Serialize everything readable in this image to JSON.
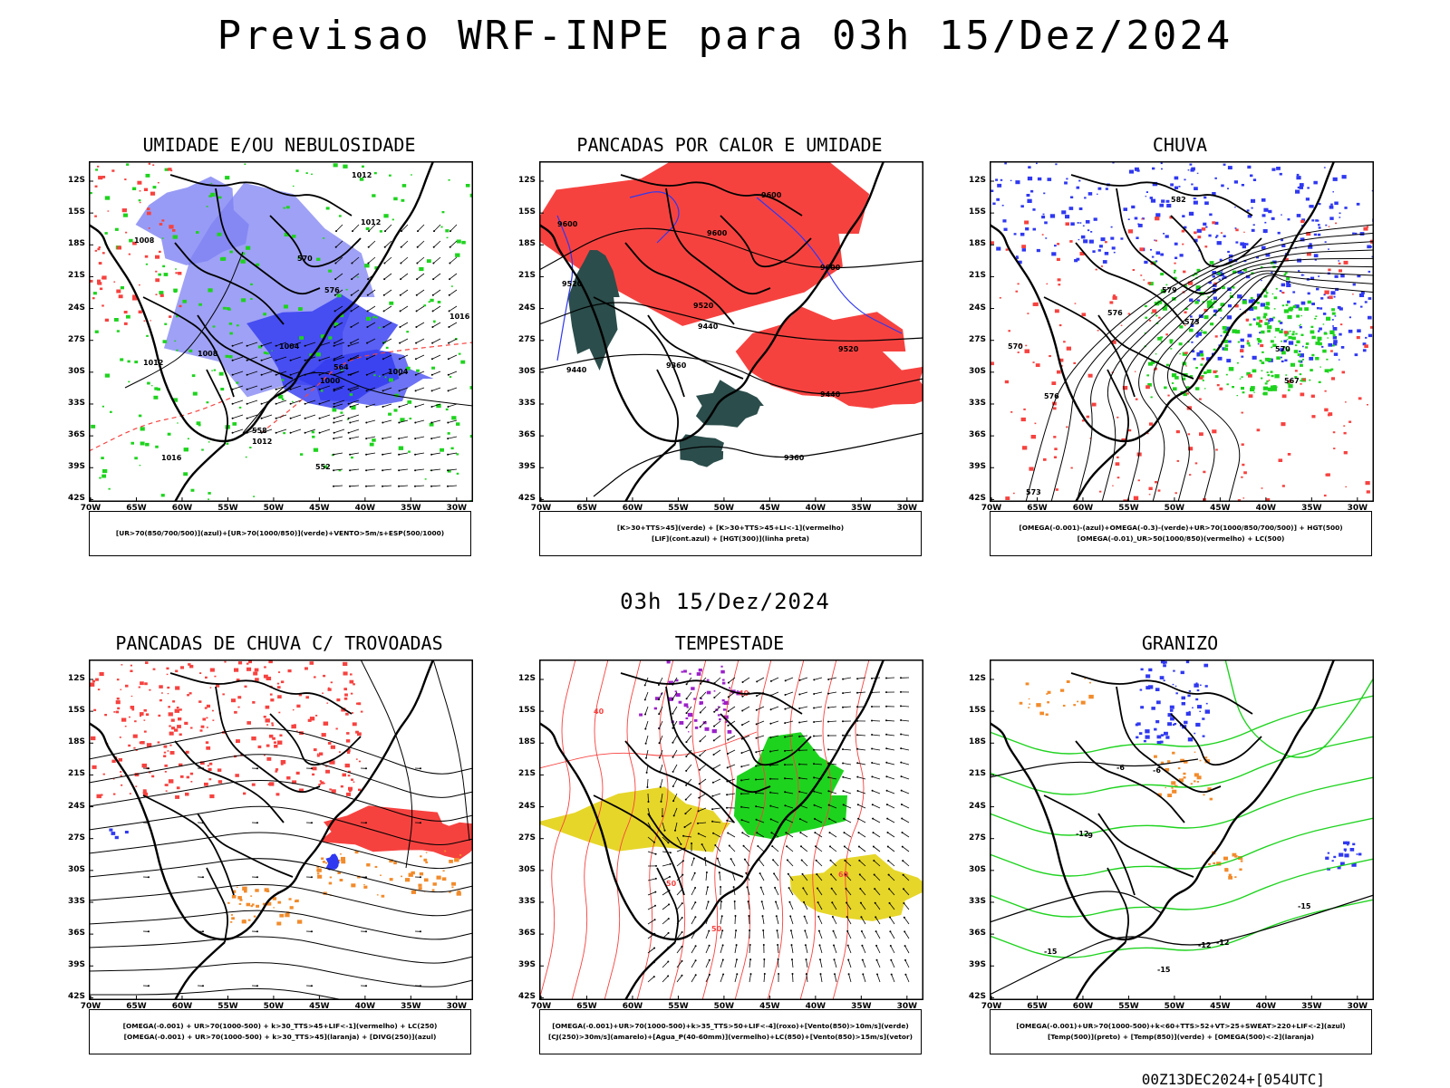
{
  "main_title": "Previsao WRF-INPE  para 03h 15/Dez/2024",
  "mid_title": "03h 15/Dez/2024",
  "footer": "00Z13DEC2024+[054UTC]",
  "axes": {
    "lat_labels": [
      "12S",
      "15S",
      "18S",
      "21S",
      "24S",
      "27S",
      "30S",
      "33S",
      "36S",
      "39S",
      "42S"
    ],
    "lon_labels": [
      "70W",
      "65W",
      "60W",
      "55W",
      "50W",
      "45W",
      "40W",
      "35W",
      "30W"
    ]
  },
  "colors": {
    "blue": "#2f38f0",
    "light_blue": "#7e82f2",
    "green": "#1ed31e",
    "red": "#f6423f",
    "orange": "#f28b2b",
    "dark_teal": "#2b4d4b",
    "yellow": "#e6d629",
    "purple": "#9b21c9"
  },
  "panels": [
    {
      "title": "UMIDADE E/OU NEBULOSIDADE",
      "legend": [
        "[UR>70(850/700/500)](azul)+[UR>70(1000/850)](verde)+VENTO>5m/s+ESP(500/1000)"
      ],
      "contour_labels": [
        "1012",
        "1008",
        "1012",
        "1004",
        "1016",
        "1008",
        "1012",
        "1004",
        "1000",
        "1012",
        "1016",
        "570",
        "576",
        "564",
        "558",
        "552"
      ],
      "fills": [
        "light_blue",
        "blue",
        "green",
        "red"
      ]
    },
    {
      "title": "PANCADAS POR CALOR E UMIDADE",
      "legend": [
        "[K>30+TTS>45](verde) + [K>30+TTS>45+LI<-1](vermelho)",
        "[LIF](cont.azul) + [HGT(300)](linha preta)"
      ],
      "contour_labels": [
        "9600",
        "9600",
        "9600",
        "9520",
        "9520",
        "9440",
        "9440",
        "9360",
        "9360",
        "9440",
        "9520",
        "9600"
      ],
      "fills": [
        "red",
        "dark_teal",
        "blue"
      ]
    },
    {
      "title": "CHUVA",
      "legend": [
        "[OMEGA(-0.001)-(azul)+OMEGA(-0.3)-(verde)+UR>70(1000/850/700/500)] + HGT(500)",
        "[OMEGA(-0.01)_UR>50(1000/850)(vermelho) + LC(500)"
      ],
      "contour_labels": [
        "582",
        "579",
        "576",
        "573",
        "570",
        "567",
        "576",
        "573",
        "570"
      ],
      "fills": [
        "blue",
        "green",
        "red"
      ]
    },
    {
      "title": "PANCADAS DE CHUVA C/ TROVOADAS",
      "legend": [
        "[OMEGA(-0.001) + UR>70(1000-500) + k>30_TTS>45+LIF<-1](vermelho) + LC(250)",
        "[OMEGA(-0.001) + UR>70(1000-500) + k>30_TTS>45](laranja) + [DIVG(250)](azul)"
      ],
      "contour_labels": [],
      "fills": [
        "red",
        "orange",
        "blue"
      ]
    },
    {
      "title": "TEMPESTADE",
      "legend": [
        "[OMEGA(-0.001)+UR>70(1000-500)+k>35_TTS>50+LIF<-4](roxo)+[Vento(850)>10m/s](verde)",
        "[CJ(250)>30m/s](amarelo)+[Agua_P(40-60mm)](vermelho)+LC(850)+[Vento(850)>15m/s](vetor)"
      ],
      "contour_labels": [
        "50",
        "50",
        "40",
        "60",
        "40"
      ],
      "fills": [
        "yellow",
        "green",
        "purple",
        "red"
      ]
    },
    {
      "title": "GRANIZO",
      "legend": [
        "[OMEGA(-0.001)+UR>70(1000-500)+k<60+TTS>52+VT>25+SWEAT>220+LIF<-2](azul)",
        "[Temp(500)](preto) + [Temp(850)](verde) + [OMEGA(500)<-2](laranja)"
      ],
      "contour_labels": [
        "-6",
        "-6",
        "-9",
        "-12",
        "-15",
        "-12",
        "-15",
        "-15",
        "-12"
      ],
      "fills": [
        "green",
        "blue",
        "orange"
      ]
    }
  ]
}
